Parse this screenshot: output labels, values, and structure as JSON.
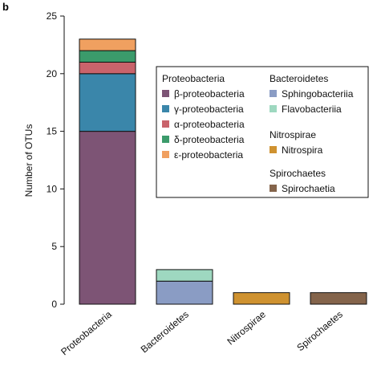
{
  "panel_label": "b",
  "chart_data": {
    "type": "bar",
    "stacked": true,
    "ylabel": "Number of OTUs",
    "xlabel": "",
    "ylim": [
      0,
      25
    ],
    "yticks": [
      0,
      5,
      10,
      15,
      20,
      25
    ],
    "grid": false,
    "legend_position": "top-right",
    "categories": [
      "Proteobacteria",
      "Bacteroidetes",
      "Nitrospirae",
      "Spirochaetes"
    ],
    "series": [
      {
        "name": "β-proteobacteria",
        "group": "Proteobacteria",
        "color": "#7d5475",
        "values": [
          15,
          0,
          0,
          0
        ]
      },
      {
        "name": "γ-proteobacteria",
        "group": "Proteobacteria",
        "color": "#3a86aa",
        "values": [
          5,
          0,
          0,
          0
        ]
      },
      {
        "name": "α-proteobacteria",
        "group": "Proteobacteria",
        "color": "#c9636b",
        "values": [
          1,
          0,
          0,
          0
        ]
      },
      {
        "name": "δ-proteobacteria",
        "group": "Proteobacteria",
        "color": "#3b9b6b",
        "values": [
          1,
          0,
          0,
          0
        ]
      },
      {
        "name": "ε-proteobacteria",
        "group": "Proteobacteria",
        "color": "#f0a060",
        "values": [
          1,
          0,
          0,
          0
        ]
      },
      {
        "name": "Sphingobacteriia",
        "group": "Bacteroidetes",
        "color": "#8a9cc4",
        "values": [
          0,
          2,
          0,
          0
        ]
      },
      {
        "name": "Flavobacteriia",
        "group": "Bacteroidetes",
        "color": "#9ed8c0",
        "values": [
          0,
          1,
          0,
          0
        ]
      },
      {
        "name": "Nitrospira",
        "group": "Nitrospirae",
        "color": "#cf9230",
        "values": [
          0,
          0,
          1,
          0
        ]
      },
      {
        "name": "Spirochaetia",
        "group": "Spirochaetes",
        "color": "#84644b",
        "values": [
          0,
          0,
          0,
          1
        ]
      }
    ],
    "legend_groups": [
      "Proteobacteria",
      "Bacteroidetes",
      "Nitrospirae",
      "Spirochaetes"
    ]
  }
}
